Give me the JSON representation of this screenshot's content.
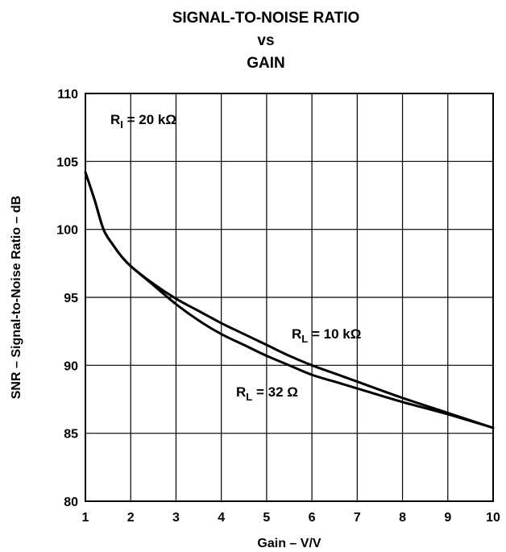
{
  "chart_data": {
    "type": "line",
    "title_lines": [
      "SIGNAL-TO-NOISE RATIO",
      "vs",
      "GAIN"
    ],
    "xlabel": "Gain – V/V",
    "ylabel": "SNR – Signal-to-Noise Ratio – dB",
    "xlim": [
      1,
      10
    ],
    "ylim": [
      80,
      110
    ],
    "xticks": [
      "1",
      "2",
      "3",
      "4",
      "5",
      "6",
      "7",
      "8",
      "9",
      "10"
    ],
    "yticks": [
      "80",
      "85",
      "90",
      "95",
      "100",
      "105",
      "110"
    ],
    "grid": true,
    "annotations": {
      "condition": {
        "main": "R",
        "sub": "I",
        "rest": " = 20 kΩ"
      },
      "series_10k": {
        "main": "R",
        "sub": "L",
        "rest": " = 10 kΩ"
      },
      "series_32": {
        "main": "R",
        "sub": "L",
        "rest": " = 32 Ω"
      }
    },
    "series": [
      {
        "name": "RL = 10 kΩ",
        "x": [
          1.0,
          1.2,
          1.4,
          1.6,
          1.8,
          2.0,
          2.5,
          3.0,
          3.5,
          4.0,
          4.5,
          5.0,
          5.5,
          6.0,
          6.5,
          7.0,
          8.0,
          9.0,
          10.0
        ],
        "y": [
          104.2,
          102.2,
          100.0,
          98.9,
          98.0,
          97.3,
          96.0,
          94.9,
          94.0,
          93.1,
          92.3,
          91.5,
          90.7,
          90.0,
          89.4,
          88.8,
          87.6,
          86.5,
          85.4
        ]
      },
      {
        "name": "RL = 32 Ω",
        "x": [
          1.0,
          1.2,
          1.4,
          1.6,
          1.8,
          2.0,
          2.5,
          3.0,
          3.5,
          4.0,
          4.5,
          5.0,
          5.5,
          6.0,
          6.5,
          7.0,
          8.0,
          9.0,
          10.0
        ],
        "y": [
          104.2,
          102.2,
          100.0,
          98.9,
          98.0,
          97.3,
          95.9,
          94.5,
          93.3,
          92.3,
          91.5,
          90.7,
          90.0,
          89.3,
          88.8,
          88.3,
          87.3,
          86.4,
          85.4
        ]
      }
    ]
  }
}
